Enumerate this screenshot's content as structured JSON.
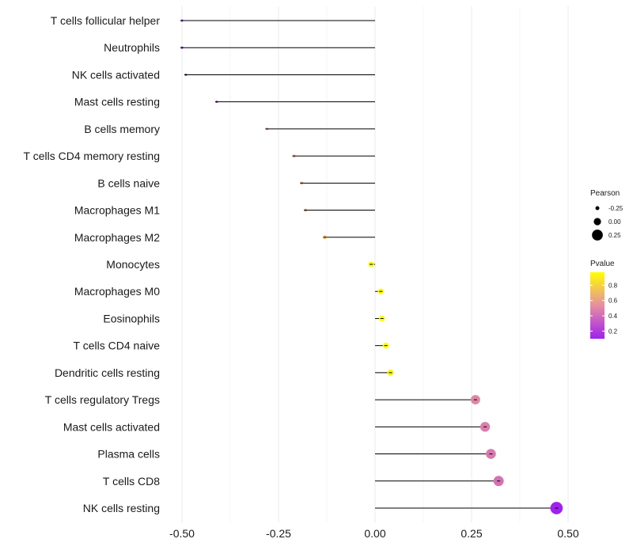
{
  "chart_data": {
    "type": "lollipop",
    "title": "",
    "xlabel": "",
    "ylabel": "",
    "xlim": [
      -0.5,
      0.5
    ],
    "x_ticks": [
      -0.5,
      -0.25,
      0.0,
      0.25,
      0.5
    ],
    "x_tick_labels": [
      "-0.50",
      "-0.25",
      "0.00",
      "0.25",
      "0.50"
    ],
    "grid": true,
    "categories": [
      "T cells follicular helper",
      "Neutrophils",
      "NK cells activated",
      "Mast cells resting",
      "B cells memory",
      "T cells CD4 memory resting",
      "B cells naive",
      "Macrophages M1",
      "Macrophages M2",
      "Monocytes",
      "Macrophages M0",
      "Eosinophils",
      "T cells CD4 naive",
      "Dendritic cells resting",
      "T cells regulatory  Tregs",
      "Mast cells activated",
      "Plasma cells",
      "T cells CD8",
      "NK cells resting"
    ],
    "values": [
      -0.5,
      -0.5,
      -0.49,
      -0.41,
      -0.28,
      -0.21,
      -0.19,
      -0.18,
      -0.13,
      -0.01,
      0.015,
      0.018,
      0.028,
      0.04,
      0.26,
      0.285,
      0.3,
      0.32,
      0.47
    ],
    "pvalues": [
      0.1,
      0.1,
      0.12,
      0.2,
      0.5,
      0.6,
      0.62,
      0.62,
      0.72,
      0.97,
      0.97,
      0.97,
      0.97,
      0.93,
      0.5,
      0.47,
      0.45,
      0.42,
      0.1
    ],
    "legend": {
      "size_title": "Pearson",
      "size_labels": [
        "-0.25",
        "0.00",
        "0.25"
      ],
      "size_values": [
        -0.25,
        0.0,
        0.25
      ],
      "color_title": "Pvalue",
      "color_ticks": [
        0.2,
        0.4,
        0.6,
        0.8
      ],
      "color_tick_labels": [
        "0.2",
        "0.4",
        "0.6",
        "0.8"
      ],
      "color_range": [
        0.1,
        0.97
      ],
      "position": "right"
    },
    "colors": {
      "low": "#a020f0",
      "mid": "#e58fa0",
      "high": "#ffff00",
      "segment": "#000000",
      "grid": "#ebebeb"
    }
  }
}
